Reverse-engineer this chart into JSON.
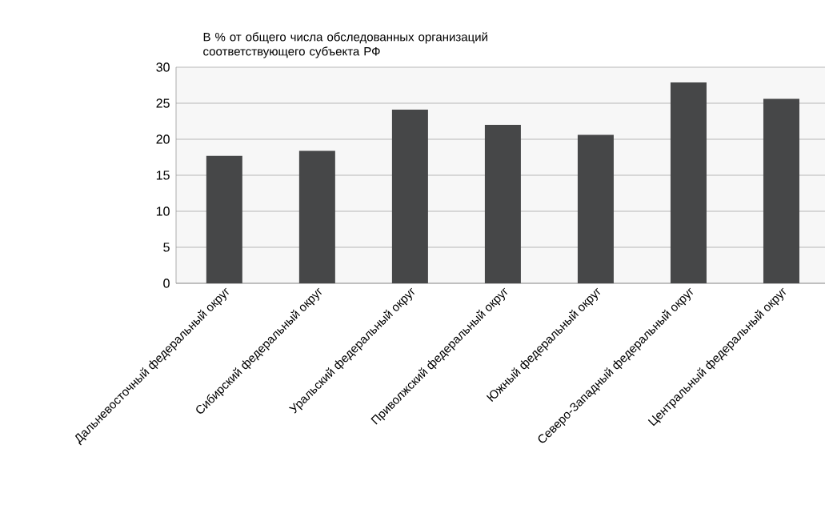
{
  "chart_data": {
    "type": "bar",
    "ylabel": "В % от общего числа обследованных организаций соответствующего субъекта РФ",
    "categories": [
      "Дальневосточный федеральный округ",
      "Сибирский федеральный округ",
      "Уральский федеральный округ",
      "Приволжский федеральный округ",
      "Южный федеральный округ",
      "Северо-Западный федеральный округ",
      "Центральный федеральный округ"
    ],
    "values": [
      17.7,
      18.4,
      24.1,
      22.0,
      20.6,
      27.9,
      25.6
    ],
    "color": "#464748",
    "ylim": [
      0,
      30
    ],
    "yticks": [
      0,
      5,
      10,
      15,
      20,
      25,
      30
    ],
    "grid": "y"
  }
}
